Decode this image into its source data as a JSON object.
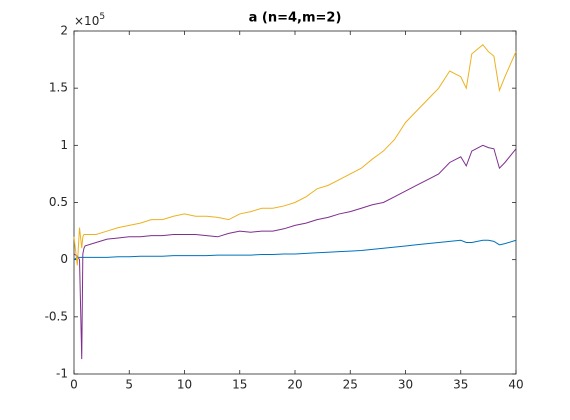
{
  "chart_data": {
    "type": "line",
    "title": "a (n=4,m=2)",
    "y_multiplier": {
      "base": "×10",
      "exponent": "5"
    },
    "x": [
      0,
      0.3,
      0.5,
      0.7,
      0.8,
      0.9,
      1,
      2,
      3,
      4,
      5,
      6,
      7,
      8,
      9,
      10,
      11,
      12,
      13,
      14,
      15,
      16,
      17,
      18,
      19,
      20,
      21,
      22,
      23,
      24,
      25,
      26,
      27,
      28,
      29,
      30,
      31,
      32,
      33,
      34,
      35,
      35.5,
      36,
      37,
      37.5,
      38,
      38.5,
      39,
      40
    ],
    "series": [
      {
        "color": "#0072bd",
        "values": [
          0.0,
          0.02,
          0.02,
          0.02,
          0.02,
          0.02,
          0.02,
          0.02,
          0.02,
          0.025,
          0.025,
          0.03,
          0.03,
          0.03,
          0.035,
          0.035,
          0.035,
          0.035,
          0.04,
          0.04,
          0.04,
          0.04,
          0.045,
          0.045,
          0.05,
          0.05,
          0.055,
          0.06,
          0.065,
          0.07,
          0.075,
          0.08,
          0.09,
          0.1,
          0.11,
          0.12,
          0.13,
          0.14,
          0.15,
          0.16,
          0.17,
          0.15,
          0.15,
          0.17,
          0.17,
          0.16,
          0.13,
          0.14,
          0.17
        ]
      },
      {
        "color": "#7e2f8e",
        "values": [
          0.05,
          0.03,
          0.0,
          -0.87,
          0.05,
          0.1,
          0.12,
          0.15,
          0.18,
          0.19,
          0.2,
          0.2,
          0.21,
          0.21,
          0.22,
          0.22,
          0.22,
          0.21,
          0.2,
          0.23,
          0.25,
          0.24,
          0.25,
          0.25,
          0.27,
          0.3,
          0.32,
          0.35,
          0.37,
          0.4,
          0.42,
          0.45,
          0.48,
          0.5,
          0.55,
          0.6,
          0.65,
          0.7,
          0.75,
          0.85,
          0.9,
          0.82,
          0.95,
          1.0,
          0.98,
          0.97,
          0.8,
          0.85,
          0.97
        ]
      },
      {
        "color": "#edb120",
        "values": [
          0.2,
          -0.05,
          0.28,
          0.1,
          0.2,
          0.22,
          0.22,
          0.22,
          0.25,
          0.28,
          0.3,
          0.32,
          0.35,
          0.35,
          0.38,
          0.4,
          0.38,
          0.38,
          0.37,
          0.35,
          0.4,
          0.42,
          0.45,
          0.45,
          0.47,
          0.5,
          0.55,
          0.62,
          0.65,
          0.7,
          0.75,
          0.8,
          0.88,
          0.95,
          1.05,
          1.2,
          1.3,
          1.4,
          1.5,
          1.65,
          1.6,
          1.5,
          1.8,
          1.88,
          1.82,
          1.78,
          1.48,
          1.6,
          1.82
        ]
      }
    ],
    "xlim": [
      0,
      40
    ],
    "xticks": [
      0,
      5,
      10,
      15,
      20,
      25,
      30,
      35,
      40
    ],
    "ylim": [
      -1,
      2
    ],
    "yticks": [
      -1,
      -0.5,
      0,
      0.5,
      1,
      1.5,
      2
    ]
  }
}
